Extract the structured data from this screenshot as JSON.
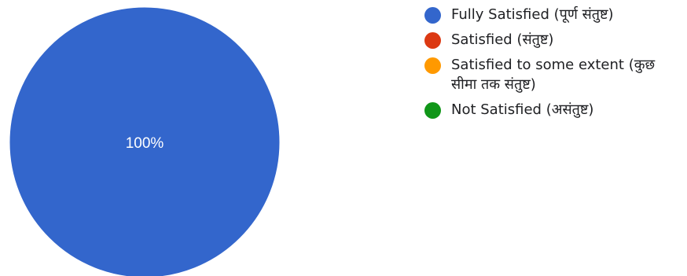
{
  "chart_data": {
    "type": "pie",
    "series": [
      {
        "name": "Fully Satisfied (पूर्ण संतुष्ट)",
        "value": 100,
        "color": "#3366cc"
      },
      {
        "name": "Satisfied (संतुष्ट)",
        "value": 0,
        "color": "#dc3912"
      },
      {
        "name": "Satisfied to some extent (कुछ सीमा तक संतुष्ट)",
        "value": 0,
        "color": "#ff9900"
      },
      {
        "name": "Not Satisfied (असंतुष्ट)",
        "value": 0,
        "color": "#109618"
      }
    ],
    "slice_labels": [
      "100%"
    ],
    "legend_position": "right"
  }
}
